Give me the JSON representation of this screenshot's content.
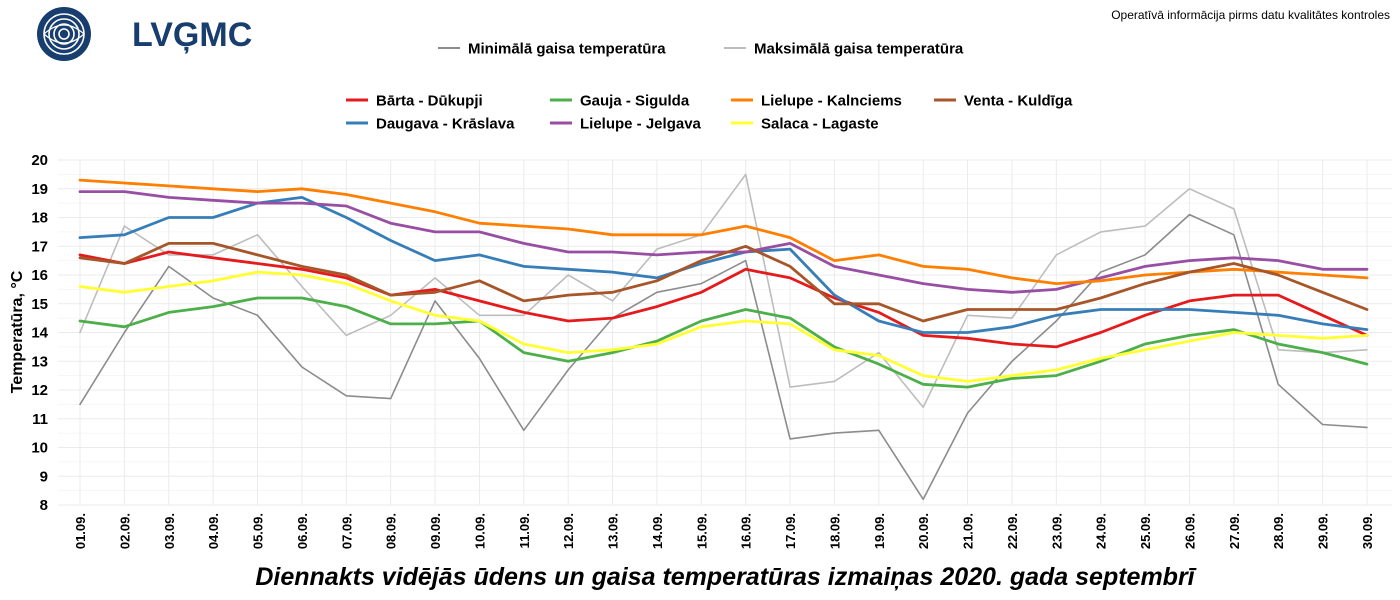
{
  "header": {
    "logo_text": "LVĢMC",
    "disclaimer": "Operatīvā informācija pirms datu kvalitātes kontroles"
  },
  "colors": {
    "grid": "#ebebeb",
    "min_air": "#8c8c8c",
    "max_air": "#bdbdbd"
  },
  "chart_data": {
    "type": "line",
    "title": "Diennakts vidējās ūdens un gaisa temperatūras izmaiņas 2020. gada septembrī",
    "xlabel": "",
    "ylabel": "Temperatūra, °C",
    "ylim": [
      8,
      20
    ],
    "yticks": [
      8,
      9,
      10,
      11,
      12,
      13,
      14,
      15,
      16,
      17,
      18,
      19,
      20
    ],
    "grid": true,
    "legend_position": "top",
    "categories": [
      "01.09.",
      "02.09.",
      "03.09.",
      "04.09.",
      "05.09.",
      "06.09.",
      "07.09.",
      "08.09.",
      "09.09.",
      "10.09.",
      "11.09.",
      "12.09.",
      "13.09.",
      "14.09.",
      "15.09.",
      "16.09.",
      "17.09.",
      "18.09.",
      "19.09.",
      "20.09.",
      "21.09.",
      "22.09.",
      "23.09.",
      "24.09.",
      "25.09.",
      "26.09.",
      "27.09.",
      "28.09.",
      "29.09.",
      "30.09."
    ],
    "air_series": [
      {
        "name": "Minimālā gaisa temperatūra",
        "color": "#8c8c8c",
        "values": [
          11.5,
          14.0,
          16.3,
          15.2,
          14.6,
          12.8,
          11.8,
          11.7,
          15.1,
          13.1,
          10.6,
          12.7,
          14.5,
          15.4,
          15.7,
          16.5,
          10.3,
          10.5,
          10.6,
          8.2,
          11.2,
          13.0,
          14.4,
          16.1,
          16.7,
          18.1,
          17.4,
          12.2,
          10.8,
          10.7
        ]
      },
      {
        "name": "Maksimālā gaisa temperatūra",
        "color": "#bdbdbd",
        "values": [
          14.0,
          17.7,
          16.7,
          16.7,
          17.4,
          15.6,
          13.9,
          14.6,
          15.9,
          14.6,
          14.6,
          16.0,
          15.1,
          16.9,
          17.4,
          19.5,
          12.1,
          12.3,
          13.3,
          11.4,
          14.6,
          14.5,
          16.7,
          17.5,
          17.7,
          19.0,
          18.3,
          13.4,
          13.3,
          13.4
        ]
      }
    ],
    "water_series": [
      {
        "name": "Bārta - Dūkupji",
        "color": "#e41a1c",
        "values": [
          16.7,
          16.4,
          16.8,
          16.6,
          16.4,
          16.2,
          15.9,
          15.3,
          15.5,
          15.1,
          14.7,
          14.4,
          14.5,
          14.9,
          15.4,
          16.2,
          15.9,
          15.2,
          14.7,
          13.9,
          13.8,
          13.6,
          13.5,
          14.0,
          14.6,
          15.1,
          15.3,
          15.3,
          14.6,
          13.9
        ]
      },
      {
        "name": "Daugava - Krāslava",
        "color": "#377eb8",
        "values": [
          17.3,
          17.4,
          18.0,
          18.0,
          18.5,
          18.7,
          18.0,
          17.2,
          16.5,
          16.7,
          16.3,
          16.2,
          16.1,
          15.9,
          16.4,
          16.8,
          16.9,
          15.3,
          14.4,
          14.0,
          14.0,
          14.2,
          14.6,
          14.8,
          14.8,
          14.8,
          14.7,
          14.6,
          14.3,
          14.1
        ]
      },
      {
        "name": "Gauja - Sigulda",
        "color": "#4daf4a",
        "values": [
          14.4,
          14.2,
          14.7,
          14.9,
          15.2,
          15.2,
          14.9,
          14.3,
          14.3,
          14.4,
          13.3,
          13.0,
          13.3,
          13.7,
          14.4,
          14.8,
          14.5,
          13.5,
          12.9,
          12.2,
          12.1,
          12.4,
          12.5,
          13.0,
          13.6,
          13.9,
          14.1,
          13.6,
          13.3,
          12.9
        ]
      },
      {
        "name": "Lielupe - Jelgava",
        "color": "#984ea3",
        "values": [
          18.9,
          18.9,
          18.7,
          18.6,
          18.5,
          18.5,
          18.4,
          17.8,
          17.5,
          17.5,
          17.1,
          16.8,
          16.8,
          16.7,
          16.8,
          16.8,
          17.1,
          16.3,
          16.0,
          15.7,
          15.5,
          15.4,
          15.5,
          15.9,
          16.3,
          16.5,
          16.6,
          16.5,
          16.2,
          16.2
        ]
      },
      {
        "name": "Lielupe - Kalnciems",
        "color": "#ff7f00",
        "values": [
          19.3,
          19.2,
          19.1,
          19.0,
          18.9,
          19.0,
          18.8,
          18.5,
          18.2,
          17.8,
          17.7,
          17.6,
          17.4,
          17.4,
          17.4,
          17.7,
          17.3,
          16.5,
          16.7,
          16.3,
          16.2,
          15.9,
          15.7,
          15.8,
          16.0,
          16.1,
          16.2,
          16.1,
          16.0,
          15.9
        ]
      },
      {
        "name": "Salaca - Lagaste",
        "color": "#ffff33",
        "values": [
          15.6,
          15.4,
          15.6,
          15.8,
          16.1,
          16.0,
          15.7,
          15.1,
          14.6,
          14.4,
          13.6,
          13.3,
          13.4,
          13.6,
          14.2,
          14.4,
          14.3,
          13.4,
          13.2,
          12.5,
          12.3,
          12.5,
          12.7,
          13.1,
          13.4,
          13.7,
          14.0,
          13.9,
          13.8,
          13.9
        ]
      },
      {
        "name": "Venta - Kuldīga",
        "color": "#a65628",
        "values": [
          16.6,
          16.4,
          17.1,
          17.1,
          16.7,
          16.3,
          16.0,
          15.3,
          15.4,
          15.8,
          15.1,
          15.3,
          15.4,
          15.8,
          16.5,
          17.0,
          16.3,
          15.0,
          15.0,
          14.4,
          14.8,
          14.8,
          14.8,
          15.2,
          15.7,
          16.1,
          16.4,
          16.0,
          15.4,
          14.8
        ]
      }
    ]
  }
}
